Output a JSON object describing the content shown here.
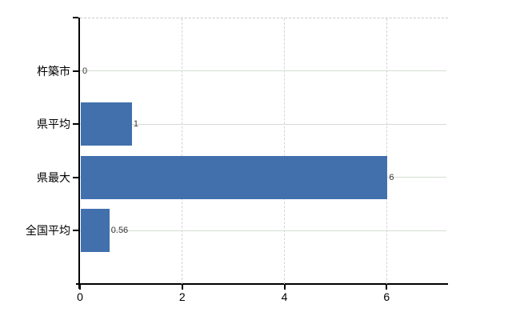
{
  "chart_data": {
    "type": "bar",
    "orientation": "horizontal",
    "categories": [
      "杵築市",
      "県平均",
      "県最大",
      "全国平均"
    ],
    "values": [
      0,
      1,
      6,
      0.56
    ],
    "value_labels": [
      "0",
      "1",
      "6",
      "0.56"
    ],
    "xticks": [
      0,
      2,
      4,
      6
    ],
    "xtick_labels": [
      "0",
      "2",
      "4",
      "6"
    ],
    "xlim": [
      0,
      7.2
    ],
    "grid": true,
    "legend": false,
    "colors": {
      "bar": "#4170ad",
      "grid_horizontal": "#d5ddd4",
      "grid_vertical": "#d6d2d8",
      "axis": "#000000",
      "value_label": "#353535",
      "tick_label": "#000000",
      "background": "#ffffff"
    }
  }
}
